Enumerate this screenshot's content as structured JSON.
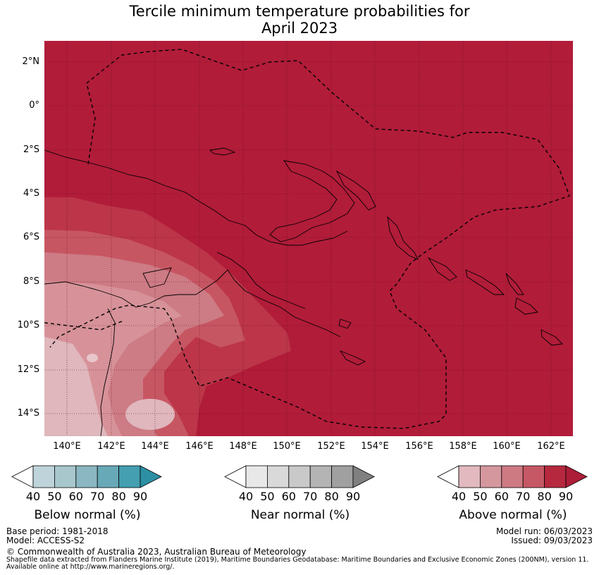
{
  "title_line1": "Tercile minimum temperature probabilities for",
  "title_line2": "April 2023",
  "lat_labels": [
    "2°N",
    "0°",
    "2°S",
    "4°S",
    "6°S",
    "8°S",
    "10°S",
    "12°S",
    "14°S"
  ],
  "lon_labels": [
    "140°E",
    "142°E",
    "144°E",
    "146°E",
    "148°E",
    "150°E",
    "152°E",
    "154°E",
    "156°E",
    "158°E",
    "160°E",
    "162°E"
  ],
  "colorbars": [
    {
      "title": "Below normal (%)",
      "ticks": [
        "40",
        "50",
        "60",
        "70",
        "80",
        "90"
      ],
      "colors": [
        "#ffffff",
        "#bfd4da",
        "#a8c7cd",
        "#8ab7c1",
        "#68a9b7",
        "#449fb1",
        "#2c8fa3"
      ]
    },
    {
      "title": "Near normal (%)",
      "ticks": [
        "40",
        "50",
        "60",
        "70",
        "80",
        "90"
      ],
      "colors": [
        "#ffffff",
        "#e8e8e8",
        "#d9d9d9",
        "#c9c9c9",
        "#b4b4b4",
        "#a0a0a0",
        "#808080"
      ]
    },
    {
      "title": "Above normal (%)",
      "ticks": [
        "40",
        "50",
        "60",
        "70",
        "80",
        "90"
      ],
      "colors": [
        "#ffffff",
        "#e1b9be",
        "#d5979e",
        "#ce7a83",
        "#c65865",
        "#b6283e",
        "#ae1d38"
      ]
    }
  ],
  "map_colors": {
    "p90": "#b11c39",
    "p80": "#bc3549",
    "p70": "#c75663",
    "p60": "#cd7b84",
    "p50": "#d79299",
    "p40": "#dfb7bd"
  },
  "footer": {
    "base_period": "Base period: 1981-2018",
    "model": "Model: ACCESS-S2",
    "model_run": "Model run: 06/03/2023",
    "issued": "Issued: 09/03/2023",
    "copyright": "© Commonwealth of Australia 2023, Australian Bureau of Meteorology",
    "shapefile_line1": "Shapefile data extracted from Flanders Marine Institute (2019), Maritime Boundaries Geodatabase: Maritime Boundaries and Exclusive Economic Zones (200NM), version 11.",
    "shapefile_line2": "Available online at http://www.marineregions.org/."
  }
}
